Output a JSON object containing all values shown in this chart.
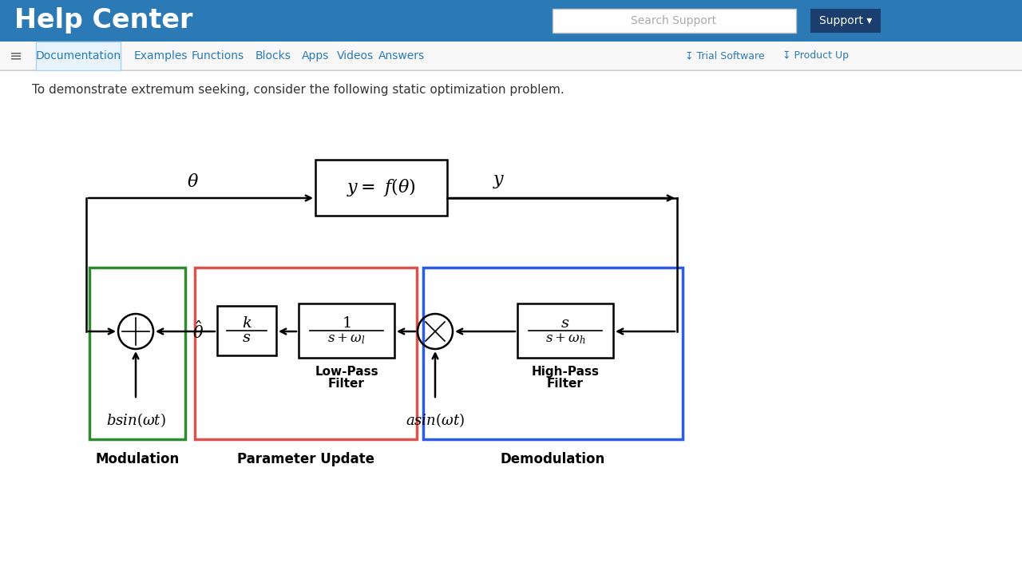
{
  "bg_color": "#ffffff",
  "header_color": "#2c7ab5",
  "header_text": "Help Center",
  "search_placeholder": "Search Support",
  "support_btn": "Support ▾",
  "nav_items": [
    "Documentation",
    "Examples",
    "Functions",
    "Blocks",
    "Apps",
    "Videos",
    "Answers"
  ],
  "body_text": "To demonstrate extremum seeking, consider the following static optimization problem.",
  "green_color": "#2e8b2e",
  "red_color": "#d9534f",
  "blue_color": "#2b5ce6",
  "black_color": "#000000"
}
